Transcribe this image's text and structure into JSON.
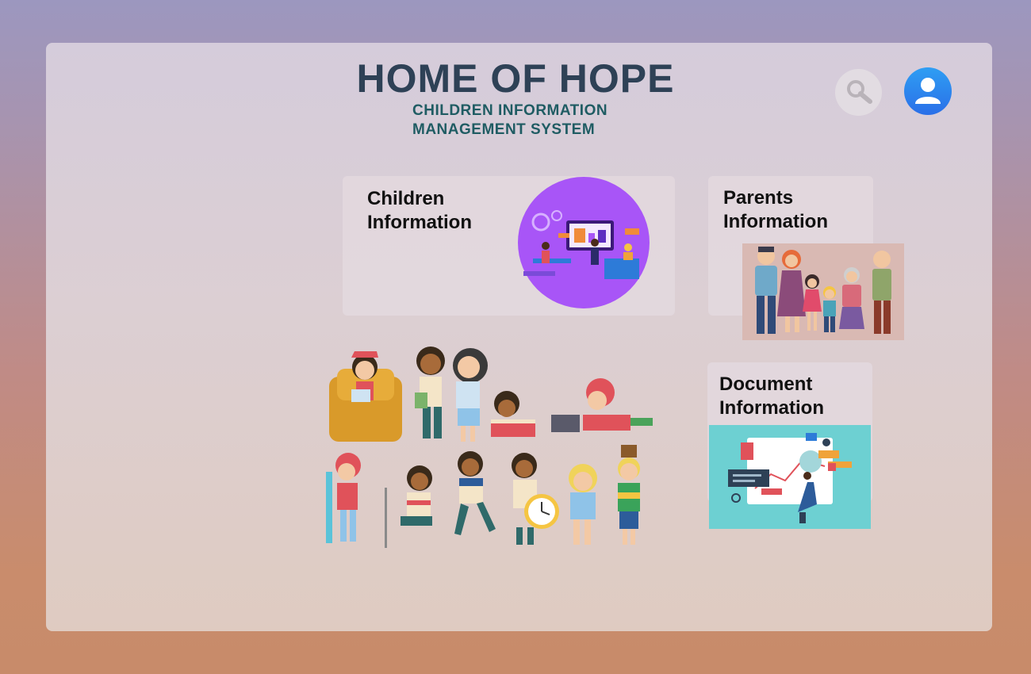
{
  "header": {
    "title": "HOME OF HOPE",
    "subtitle_line1": "CHILDREN INFORMATION",
    "subtitle_line2": "MANAGEMENT SYSTEM"
  },
  "toolbar": {
    "search_icon": "search-icon",
    "profile_icon": "user-avatar-icon"
  },
  "cards": [
    {
      "line1": "Children",
      "line2": "Information",
      "icon": "children-illustration"
    },
    {
      "line1": "Parents",
      "line2": "Information",
      "icon": "family-illustration"
    },
    {
      "line1": "Document",
      "line2": "Information",
      "icon": "document-illustration"
    }
  ],
  "colors": {
    "title": "#2e4156",
    "subtitle": "#1f5c63",
    "avatar": "#2a7ff0",
    "accent_purple": "#a855f7",
    "accent_teal": "#6dd0d2"
  }
}
